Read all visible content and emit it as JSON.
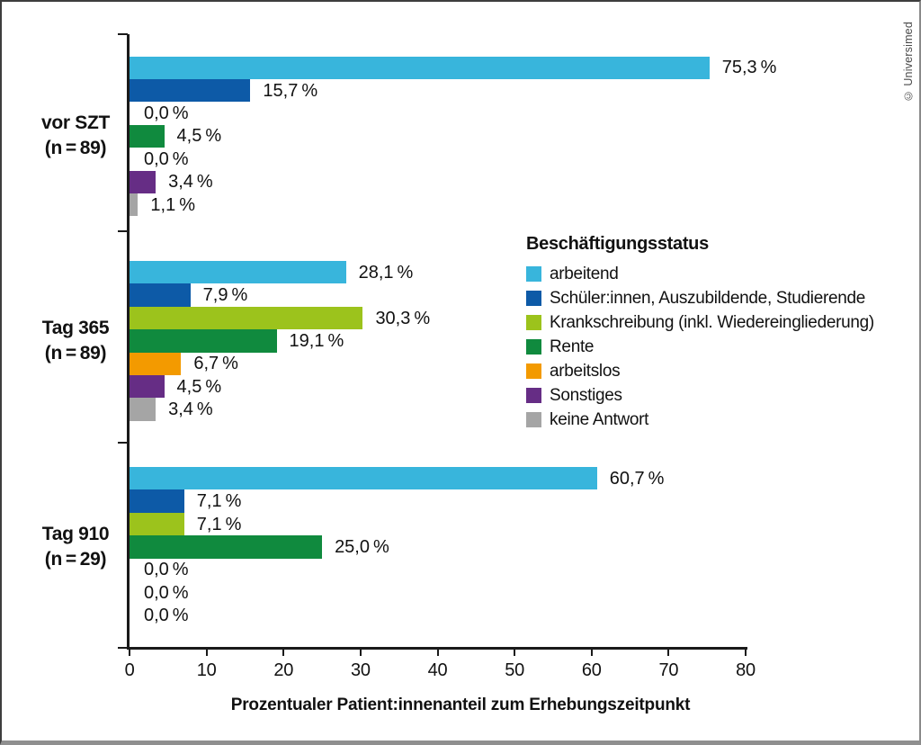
{
  "figure": {
    "credit": "© Universimed"
  },
  "chart_data": {
    "type": "bar",
    "orientation": "horizontal",
    "title": "",
    "xlabel": "Prozentualer Patient:innenanteil zum Erhebungszeitpunkt",
    "ylabel": "",
    "xlim": [
      0,
      80
    ],
    "xticks": [
      "0",
      "10",
      "20",
      "30",
      "40",
      "50",
      "60",
      "70",
      "80"
    ],
    "grid": false,
    "legend": {
      "title": "Beschäftigungsstatus",
      "position": "middle-right"
    },
    "categories": [
      {
        "label": "arbeitend",
        "color": "#38b5dc"
      },
      {
        "label": "Schüler:innen, Auszubildende, Studierende",
        "color": "#0d5aa7"
      },
      {
        "label": "Krankschreibung (inkl. Wiedereingliederung)",
        "color": "#9cc31c"
      },
      {
        "label": "Rente",
        "color": "#108a3e"
      },
      {
        "label": "arbeitslos",
        "color": "#f39a00"
      },
      {
        "label": "Sonstiges",
        "color": "#662d85"
      },
      {
        "label": "keine Antwort",
        "color": "#a5a5a5"
      }
    ],
    "groups": [
      {
        "label": "vor SZT",
        "sublabel": "(n = 89)",
        "values": [
          75.3,
          15.7,
          0.0,
          4.5,
          0.0,
          3.4,
          1.1
        ],
        "value_labels": [
          "75,3 %",
          "15,7 %",
          "0,0 %",
          "4,5 %",
          "0,0 %",
          "3,4 %",
          "1,1 %"
        ]
      },
      {
        "label": "Tag 365",
        "sublabel": "(n = 89)",
        "values": [
          28.1,
          7.9,
          30.3,
          19.1,
          6.7,
          4.5,
          3.4
        ],
        "value_labels": [
          "28,1 %",
          "7,9 %",
          "30,3 %",
          "19,1 %",
          "6,7 %",
          "4,5 %",
          "3,4 %"
        ]
      },
      {
        "label": "Tag 910",
        "sublabel": "(n = 29)",
        "values": [
          60.7,
          7.1,
          7.1,
          25.0,
          0.0,
          0.0,
          0.0
        ],
        "value_labels": [
          "60,7 %",
          "7,1 %",
          "7,1 %",
          "25,0 %",
          "0,0 %",
          "0,0 %",
          "0,0 %"
        ]
      }
    ]
  }
}
